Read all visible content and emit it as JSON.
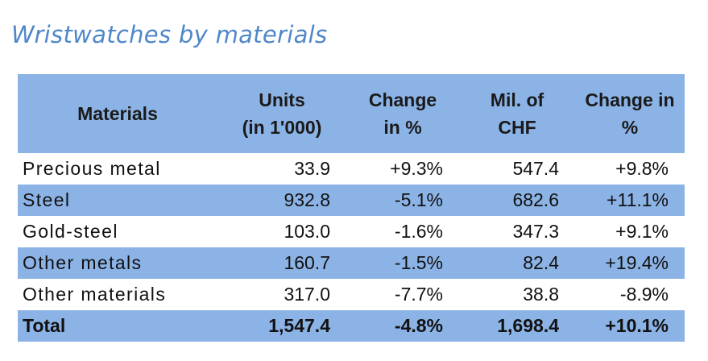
{
  "chart_data": {
    "type": "table",
    "title": "Wristwatches by materials",
    "columns": [
      [
        "Materials"
      ],
      [
        "Units",
        "(in 1'000)"
      ],
      [
        "Change",
        "in %"
      ],
      [
        "Mil. of",
        "CHF"
      ],
      [
        "Change in",
        "%"
      ]
    ],
    "rows": [
      {
        "material": "Precious metal",
        "units": "33.9",
        "units_change": "+9.3%",
        "chf": "547.4",
        "chf_change": "+9.8%"
      },
      {
        "material": "Steel",
        "units": "932.8",
        "units_change": "-5.1%",
        "chf": "682.6",
        "chf_change": "+11.1%"
      },
      {
        "material": "Gold-steel",
        "units": "103.0",
        "units_change": "-1.6%",
        "chf": "347.3",
        "chf_change": "+9.1%"
      },
      {
        "material": "Other metals",
        "units": "160.7",
        "units_change": "-1.5%",
        "chf": "82.4",
        "chf_change": "+19.4%"
      },
      {
        "material": "Other materials",
        "units": "317.0",
        "units_change": "-7.7%",
        "chf": "38.8",
        "chf_change": "-8.9%"
      }
    ],
    "total": {
      "material": "Total",
      "units": "1,547.4",
      "units_change": "-4.8%",
      "chf": "1,698.4",
      "chf_change": "+10.1%"
    },
    "colors": {
      "title": "#4f87c9",
      "band": "#8cb3e6"
    }
  }
}
